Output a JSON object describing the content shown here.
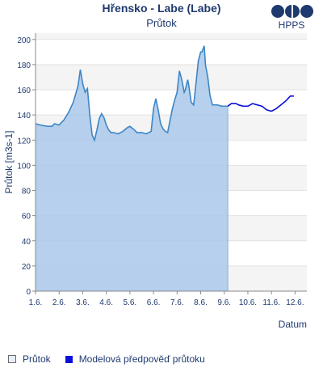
{
  "header": {
    "title": "Hřensko - Labe (Labe)",
    "subtitle": "Průtok",
    "logo_text": "HPPS"
  },
  "legend": {
    "items": [
      {
        "label": "Průtok",
        "color": "#a9c8ea"
      },
      {
        "label": "Modelová předpověď průtoku",
        "color": "#0a10d8"
      }
    ]
  },
  "chart_data": {
    "type": "line",
    "xlabel": "Datum",
    "ylabel": "Průtok [m3s-1]",
    "ylim": [
      0,
      205
    ],
    "yticks": [
      0,
      20,
      40,
      60,
      80,
      100,
      120,
      140,
      160,
      180,
      200
    ],
    "xlim": [
      1,
      12.5
    ],
    "xticks": [
      {
        "value": 1,
        "label": "1.6."
      },
      {
        "value": 2,
        "label": "2.6."
      },
      {
        "value": 3,
        "label": "3.6."
      },
      {
        "value": 4,
        "label": "4.6."
      },
      {
        "value": 5,
        "label": "5.6."
      },
      {
        "value": 6,
        "label": "6.6."
      },
      {
        "value": 7,
        "label": "7.6."
      },
      {
        "value": 8,
        "label": "8.6."
      },
      {
        "value": 9,
        "label": "9.6."
      },
      {
        "value": 10,
        "label": "10.6."
      },
      {
        "value": 11,
        "label": "11.6."
      },
      {
        "value": 12,
        "label": "12.6."
      }
    ],
    "grid": "alternating-bands",
    "legend_position": "bottom-left",
    "series": [
      {
        "name": "Průtok",
        "color": "#3d86c6",
        "fill": "#a9c8ea",
        "x": [
          1.0,
          1.2,
          1.5,
          1.7,
          1.8,
          2.0,
          2.2,
          2.4,
          2.6,
          2.8,
          2.9,
          3.0,
          3.1,
          3.2,
          3.3,
          3.4,
          3.5,
          3.6,
          3.7,
          3.8,
          3.9,
          4.0,
          4.1,
          4.2,
          4.3,
          4.5,
          4.7,
          4.9,
          5.0,
          5.2,
          5.3,
          5.5,
          5.7,
          5.9,
          6.0,
          6.1,
          6.2,
          6.3,
          6.4,
          6.5,
          6.6,
          6.8,
          6.9,
          7.0,
          7.1,
          7.2,
          7.3,
          7.35,
          7.45,
          7.5,
          7.6,
          7.7,
          7.8,
          7.9,
          8.0,
          8.05,
          8.15,
          8.2,
          8.3,
          8.4,
          8.5,
          8.7,
          8.9,
          9.0,
          9.15
        ],
        "y": [
          133,
          132,
          131,
          131,
          133,
          132,
          136,
          142,
          150,
          163,
          176,
          165,
          158,
          161,
          140,
          124,
          120,
          128,
          137,
          141,
          138,
          132,
          128,
          126,
          126,
          125,
          127,
          130,
          131,
          128,
          126,
          126,
          125,
          127,
          145,
          153,
          144,
          133,
          129,
          127,
          126,
          145,
          152,
          158,
          175,
          168,
          158,
          160,
          168,
          163,
          150,
          148,
          165,
          183,
          190,
          190,
          195,
          180,
          170,
          155,
          148,
          148,
          147,
          147,
          147
        ]
      },
      {
        "name": "Modelová předpověď průtoku",
        "color": "#0a10d8",
        "x": [
          9.15,
          9.3,
          9.5,
          9.6,
          9.8,
          10.0,
          10.2,
          10.4,
          10.6,
          10.8,
          11.0,
          11.2,
          11.4,
          11.6,
          11.8,
          11.95
        ],
        "y": [
          147,
          149,
          149,
          148,
          147,
          147,
          149,
          148,
          147,
          144,
          143,
          145,
          148,
          151,
          155,
          155
        ]
      }
    ]
  }
}
